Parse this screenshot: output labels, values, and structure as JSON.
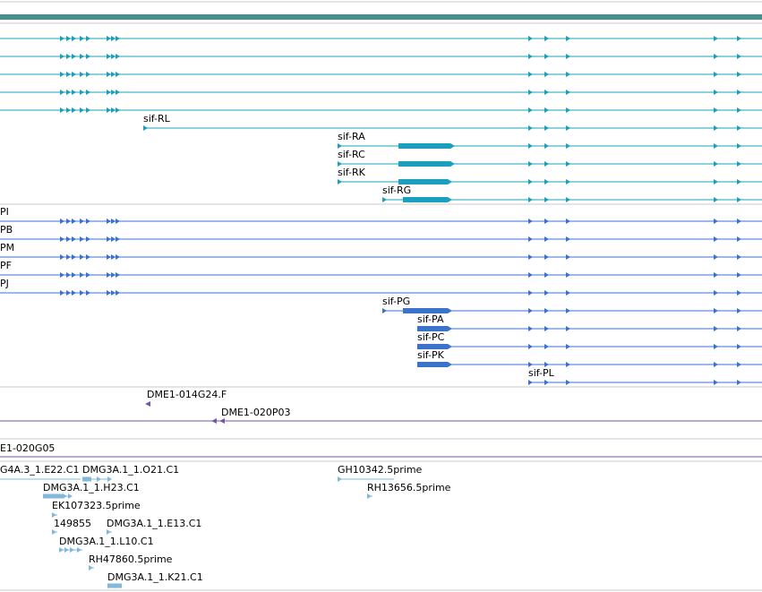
{
  "colors": {
    "ruler": "#4a8d8d",
    "divider": "#c8c8c8",
    "rna": "#1a9fbf",
    "protein": "#3a72cc",
    "clone": "#7455a8",
    "est": "#82b8dc"
  },
  "tracks": {
    "transcripts": [
      {
        "label": ""
      },
      {
        "label": ""
      },
      {
        "label": ""
      },
      {
        "label": ""
      },
      {
        "label": ""
      },
      {
        "label": "sif-RL"
      },
      {
        "label": "sif-RA"
      },
      {
        "label": "sif-RC"
      },
      {
        "label": "sif-RK"
      },
      {
        "label": "sif-RG"
      }
    ],
    "proteins": [
      {
        "label": "PI"
      },
      {
        "label": "PB"
      },
      {
        "label": "PM"
      },
      {
        "label": "PF"
      },
      {
        "label": "PJ"
      },
      {
        "label": "sif-PG"
      },
      {
        "label": "sif-PA"
      },
      {
        "label": "sif-PC"
      },
      {
        "label": "sif-PK"
      },
      {
        "label": "sif-PL"
      }
    ],
    "clones": [
      {
        "label": "DME1-014G24.F"
      },
      {
        "label": "DME1-020P03"
      }
    ],
    "clone_single": {
      "label": "E1-020G05"
    },
    "ests": [
      {
        "label": "G4A.3_1.E22.C1"
      },
      {
        "label": "DMG3A.1_1.O21.C1"
      },
      {
        "label": "GH10342.5prime"
      },
      {
        "label": "DMG3A.1_1.H23.C1"
      },
      {
        "label": "RH13656.5prime"
      },
      {
        "label": "EK107323.5prime"
      },
      {
        "label": "149855"
      },
      {
        "label": "DMG3A.1_1.E13.C1"
      },
      {
        "label": "DMG3A.1_1.L10.C1"
      },
      {
        "label": "RH47860.5prime"
      },
      {
        "label": "DMG3A.1_1.K21.C1"
      }
    ]
  }
}
